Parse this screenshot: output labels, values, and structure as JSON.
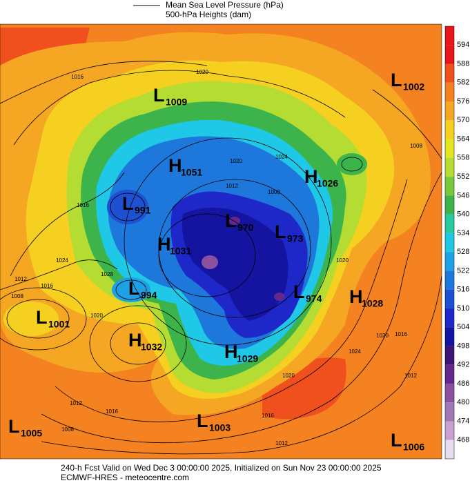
{
  "legend": {
    "line_label": "Mean Sea Level Pressure (hPa)",
    "fill_label": "500-hPa Heights (dam)"
  },
  "colorbar": [
    {
      "value": 594,
      "color": "#e8141c"
    },
    {
      "value": 588,
      "color": "#f0501e"
    },
    {
      "value": 582,
      "color": "#f58220"
    },
    {
      "value": 576,
      "color": "#f5a623"
    },
    {
      "value": 570,
      "color": "#f5d020"
    },
    {
      "value": 564,
      "color": "#e1e61e"
    },
    {
      "value": 558,
      "color": "#b4dc32"
    },
    {
      "value": 552,
      "color": "#78c83c"
    },
    {
      "value": 546,
      "color": "#3cb44b"
    },
    {
      "value": 540,
      "color": "#28c8a0"
    },
    {
      "value": 534,
      "color": "#1ec8e6"
    },
    {
      "value": 528,
      "color": "#1ea0e6"
    },
    {
      "value": 522,
      "color": "#1e78dc"
    },
    {
      "value": 516,
      "color": "#1e50d2"
    },
    {
      "value": 510,
      "color": "#1e28c8"
    },
    {
      "value": 504,
      "color": "#1414a0"
    },
    {
      "value": 498,
      "color": "#3c1478"
    },
    {
      "value": 492,
      "color": "#64288c"
    },
    {
      "value": 486,
      "color": "#8c50a0"
    },
    {
      "value": 480,
      "color": "#a078b4"
    },
    {
      "value": 474,
      "color": "#c8a0d2"
    },
    {
      "value": 468,
      "color": "#e6dcf0"
    }
  ],
  "top_color": "#e8141c",
  "centers": [
    {
      "letter": "L",
      "value": 1009
    },
    {
      "letter": "L",
      "value": 1002
    },
    {
      "letter": "H",
      "value": 1051
    },
    {
      "letter": "H",
      "value": 1026
    },
    {
      "letter": "L",
      "value": 991
    },
    {
      "letter": "L",
      "value": 970
    },
    {
      "letter": "L",
      "value": 973
    },
    {
      "letter": "H",
      "value": 1031
    },
    {
      "letter": "L",
      "value": 994
    },
    {
      "letter": "L",
      "value": 974
    },
    {
      "letter": "H",
      "value": 1028
    },
    {
      "letter": "L",
      "value": 1001
    },
    {
      "letter": "H",
      "value": 1032
    },
    {
      "letter": "H",
      "value": 1029
    },
    {
      "letter": "L",
      "value": 1005
    },
    {
      "letter": "L",
      "value": 1003
    },
    {
      "letter": "L",
      "value": 1006
    }
  ],
  "contour_labels": [
    1016,
    1020,
    1020,
    1024,
    1012,
    1008,
    1016,
    1024,
    1028,
    1016,
    1012,
    1008,
    1020,
    1020,
    1008,
    1024,
    1020,
    1016,
    1012,
    1020,
    1016,
    1012,
    1016,
    1008,
    1012
  ],
  "footer": {
    "line1": "240-h Fcst Valid on Wed Dec  3 00:00:00 2025, Initialized on Sun Nov 23 00:00:00 2025",
    "line2": "ECMWF-HRES  - meteocentre.com"
  }
}
